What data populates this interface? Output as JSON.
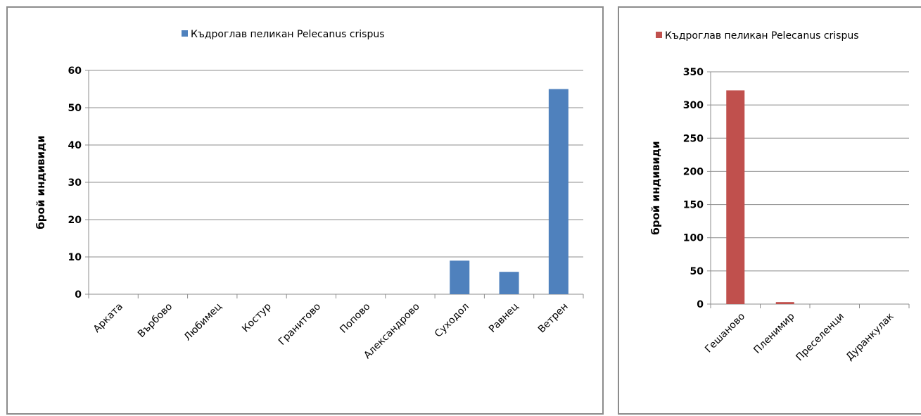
{
  "chart_data": [
    {
      "type": "bar",
      "legend": "Къдроглав пеликан Pelecanus crispus",
      "legend_position": "top",
      "ylabel": "брой индивиди",
      "xlabel": "",
      "categories": [
        "Арката",
        "Върбово",
        "Любимец",
        "Костур",
        "Гранитово",
        "Попово",
        "Александрово",
        "Суходол",
        "Равнец",
        "Ветрен"
      ],
      "series": [
        {
          "name": "Къдроглав пеликан Pelecanus crispus",
          "values": [
            0,
            0,
            0,
            0,
            0,
            0,
            0,
            9,
            6,
            55
          ]
        }
      ],
      "ylim": [
        0,
        60
      ],
      "yticks": [
        0,
        10,
        20,
        30,
        40,
        50,
        60
      ],
      "grid": true,
      "color": "#4f81bd"
    },
    {
      "type": "bar",
      "legend": "Къдроглав пеликан Pelecanus crispus",
      "legend_position": "top",
      "ylabel": "брой индивиди",
      "xlabel": "",
      "categories": [
        "Гешаново",
        "Пленимир",
        "Преселенци",
        "Дуранкулак"
      ],
      "series": [
        {
          "name": "Къдроглав пеликан Pelecanus crispus",
          "values": [
            322,
            3,
            0,
            0
          ]
        }
      ],
      "ylim": [
        0,
        350
      ],
      "yticks": [
        0,
        50,
        100,
        150,
        200,
        250,
        300,
        350
      ],
      "grid": true,
      "color": "#c0504d"
    }
  ]
}
